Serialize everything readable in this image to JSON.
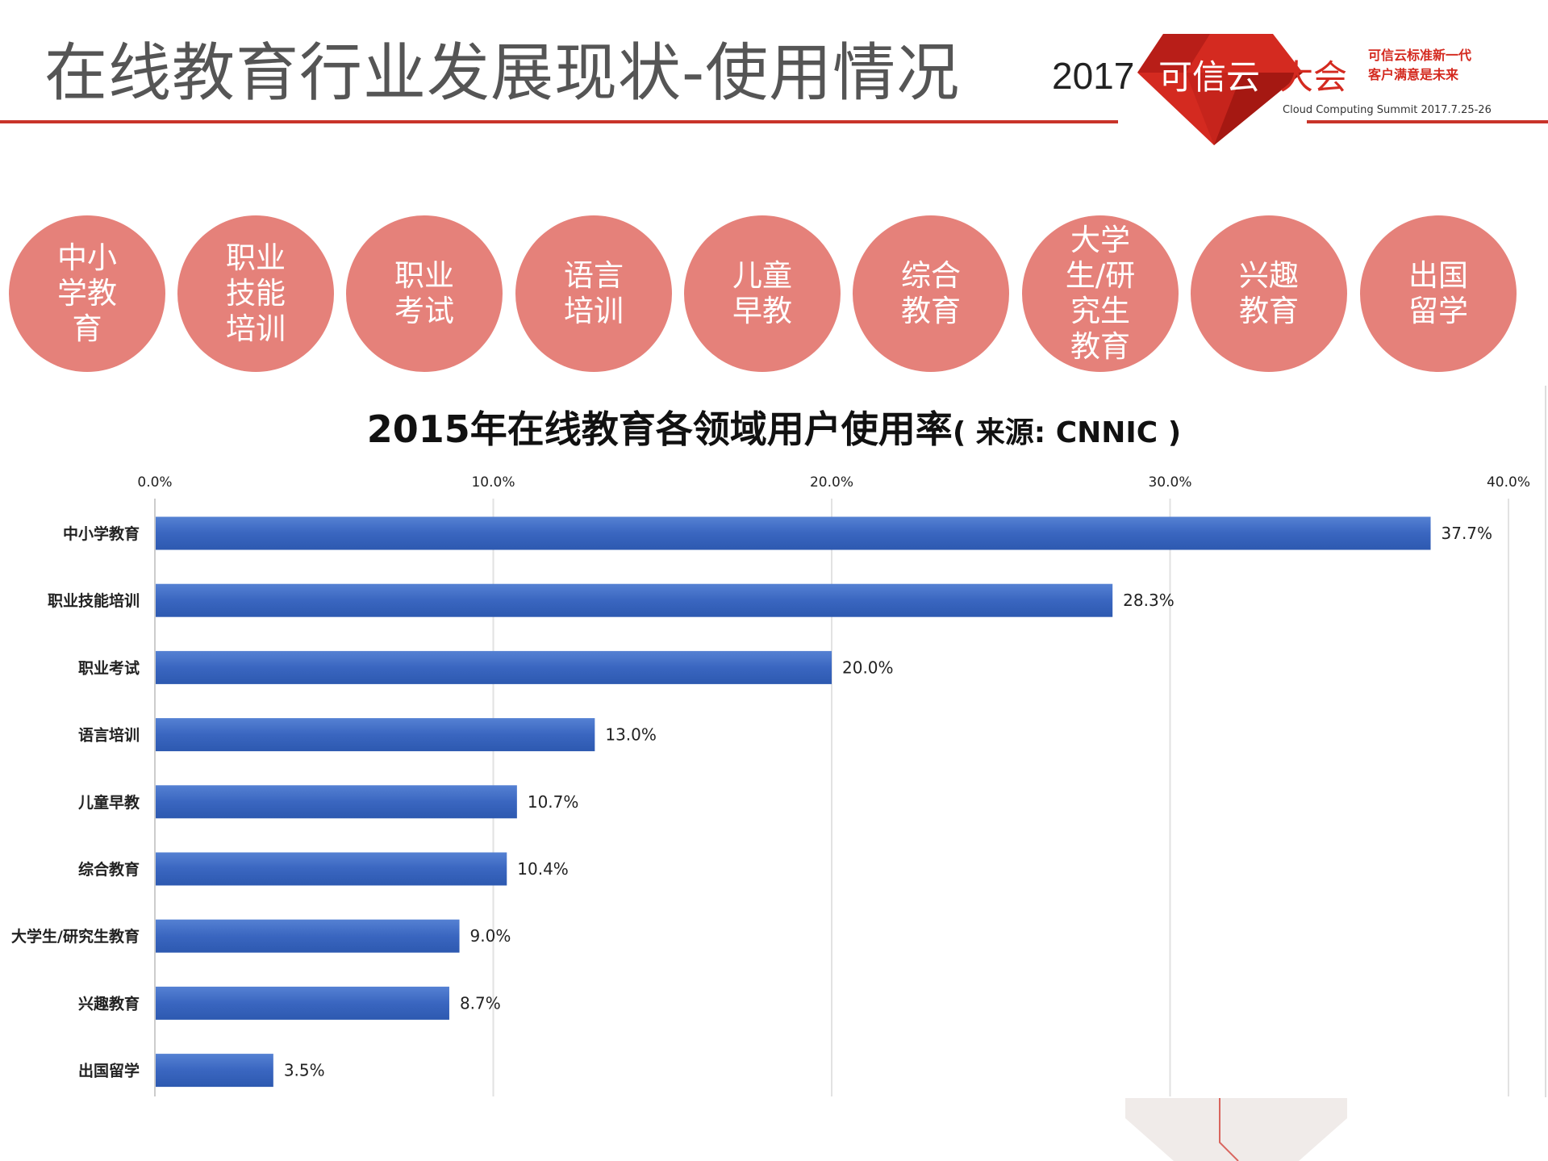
{
  "header": {
    "title": "在线教育行业发展现状-使用情况"
  },
  "logo": {
    "year": "2017",
    "name_white": "可信云",
    "name_red": "大会",
    "slogan_line1": "可信云标准新一代",
    "slogan_line2": "客户满意是未来",
    "subtitle": "Cloud Computing Summit 2017.7.25-26"
  },
  "circles": [
    "中小学教育",
    "职业技能培训",
    "职业考试",
    "语言培训",
    "儿童早教",
    "综合教育",
    "大学生/研究生教育",
    "兴趣教育",
    "出国留学"
  ],
  "colors": {
    "accent": "#c8342a",
    "circle": "#e5817a",
    "bar": "#3a66c0"
  },
  "chart_data": {
    "type": "bar",
    "orientation": "horizontal",
    "title": "2015年在线教育各领域用户使用率",
    "source": "( 来源: CNNIC )",
    "categories": [
      "中小学教育",
      "职业技能培训",
      "职业考试",
      "语言培训",
      "儿童早教",
      "综合教育",
      "大学生/研究生教育",
      "兴趣教育",
      "出国留学"
    ],
    "values": [
      37.7,
      28.3,
      20.0,
      13.0,
      10.7,
      10.4,
      9.0,
      8.7,
      3.5
    ],
    "data_labels": [
      "37.7%",
      "28.3%",
      "20.0%",
      "13.0%",
      "10.7%",
      "10.4%",
      "9.0%",
      "8.7%",
      "3.5%"
    ],
    "xlim": [
      0,
      40
    ],
    "ticks": [
      0,
      10,
      20,
      30,
      40
    ],
    "tick_labels": [
      "0.0%",
      "10.0%",
      "20.0%",
      "30.0%",
      "40.0%"
    ],
    "tick_position": "top",
    "grid": true
  }
}
